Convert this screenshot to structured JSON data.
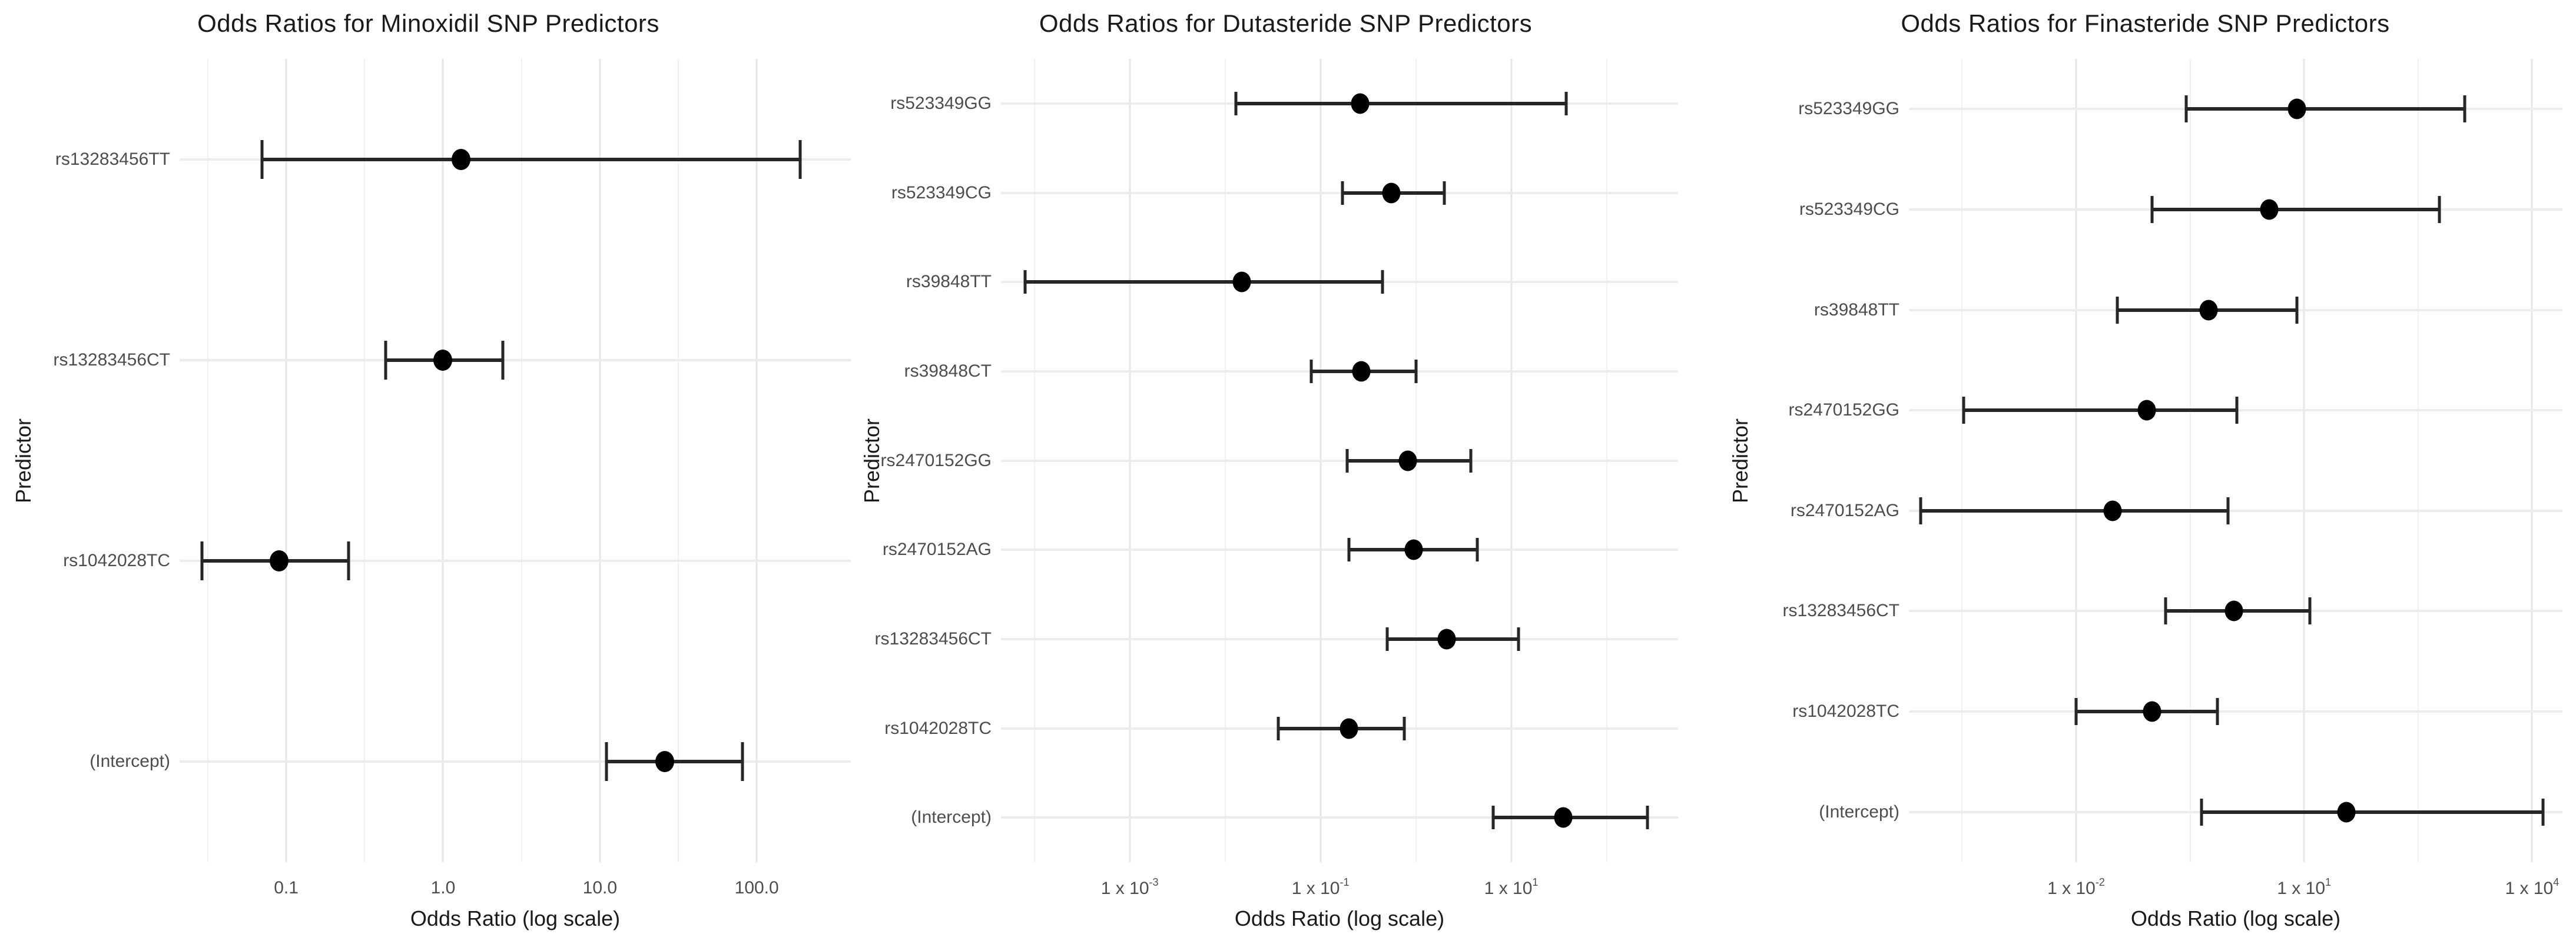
{
  "figure": {
    "background": "#ffffff",
    "palette": {
      "point": "#000000",
      "interval": "#262626",
      "grid_major": "#e6e6e6",
      "grid_minor": "#f1f1f1",
      "row_line": "#ececec",
      "tick_text": "#4d4d4d",
      "title_text": "#1a1a1a"
    }
  },
  "chart_data": [
    {
      "type": "scatter",
      "subtype": "forest-plot-odds-ratios-with-error-bars",
      "title": "Odds Ratios for Minoxidil SNP Predictors",
      "xlabel": "Odds Ratio (log scale)",
      "ylabel": "Predictor",
      "x_scale": "log10",
      "grid": "on",
      "legend": "none",
      "xlim_log10": [
        -1.68,
        2.6
      ],
      "x_ticks": [
        {
          "log10": -1,
          "text": "0.1"
        },
        {
          "log10": 0,
          "text": "1.0"
        },
        {
          "log10": 1,
          "text": "10.0"
        },
        {
          "log10": 2,
          "text": "100.0"
        }
      ],
      "x_minor_gridlines_log10": [
        -1.5,
        -0.5,
        0.5,
        1.5
      ],
      "rows": [
        {
          "label": "rs13283456TT",
          "or": 1.3,
          "ci_low": 0.07,
          "ci_high": 190
        },
        {
          "label": "rs13283456CT",
          "or": 1.0,
          "ci_low": 0.43,
          "ci_high": 2.4
        },
        {
          "label": "rs1042028TC",
          "or": 0.09,
          "ci_low": 0.029,
          "ci_high": 0.25
        },
        {
          "label": "(Intercept)",
          "or": 26,
          "ci_low": 11,
          "ci_high": 81
        }
      ]
    },
    {
      "type": "scatter",
      "subtype": "forest-plot-odds-ratios-with-error-bars",
      "title": "Odds Ratios for Dutasteride SNP Predictors",
      "xlabel": "Odds Ratio (log scale)",
      "ylabel": "Predictor",
      "x_scale": "log10",
      "grid": "on",
      "legend": "none",
      "xlim_log10": [
        -4.35,
        2.75
      ],
      "x_ticks": [
        {
          "log10": -3,
          "text": "1 x 10",
          "sup": "-3"
        },
        {
          "log10": -1,
          "text": "1 x 10",
          "sup": "-1"
        },
        {
          "log10": 1,
          "text": "1 x 10",
          "sup": "1"
        }
      ],
      "x_minor_gridlines_log10": [
        -4,
        -2,
        0,
        2
      ],
      "rows": [
        {
          "label": "rs523349GG",
          "or": 0.26,
          "ci_low": 0.013,
          "ci_high": 38
        },
        {
          "label": "rs523349CG",
          "or": 0.55,
          "ci_low": 0.17,
          "ci_high": 2.0
        },
        {
          "label": "rs39848TT",
          "or": 0.015,
          "ci_low": 8e-05,
          "ci_high": 0.45
        },
        {
          "label": "rs39848CT",
          "or": 0.27,
          "ci_low": 0.08,
          "ci_high": 1.0
        },
        {
          "label": "rs2470152GG",
          "or": 0.82,
          "ci_low": 0.19,
          "ci_high": 3.8
        },
        {
          "label": "rs2470152AG",
          "or": 0.95,
          "ci_low": 0.2,
          "ci_high": 4.4
        },
        {
          "label": "rs13283456CT",
          "or": 2.1,
          "ci_low": 0.5,
          "ci_high": 12
        },
        {
          "label": "rs1042028TC",
          "or": 0.2,
          "ci_low": 0.036,
          "ci_high": 0.76
        },
        {
          "label": "(Intercept)",
          "or": 35,
          "ci_low": 6.5,
          "ci_high": 270
        }
      ]
    },
    {
      "type": "scatter",
      "subtype": "forest-plot-odds-ratios-with-error-bars",
      "title": "Odds Ratios for Finasteride SNP Predictors",
      "xlabel": "Odds Ratio (log scale)",
      "ylabel": "Predictor",
      "x_scale": "log10",
      "grid": "on",
      "legend": "none",
      "xlim_log10": [
        -4.2,
        4.4
      ],
      "x_ticks": [
        {
          "log10": -2,
          "text": "1 x 10",
          "sup": "-2"
        },
        {
          "log10": 1,
          "text": "1 x 10",
          "sup": "1"
        },
        {
          "log10": 4,
          "text": "1 x 10",
          "sup": "4"
        }
      ],
      "x_minor_gridlines_log10": [
        -3.5,
        -0.5,
        2.5
      ],
      "rows": [
        {
          "label": "rs523349GG",
          "or": 8,
          "ci_low": 0.28,
          "ci_high": 1300
        },
        {
          "label": "rs523349CG",
          "or": 3.5,
          "ci_low": 0.1,
          "ci_high": 600
        },
        {
          "label": "rs39848TT",
          "or": 0.55,
          "ci_low": 0.035,
          "ci_high": 8
        },
        {
          "label": "rs2470152GG",
          "or": 0.085,
          "ci_low": 0.00033,
          "ci_high": 1.3
        },
        {
          "label": "rs2470152AG",
          "or": 0.03,
          "ci_low": 9e-05,
          "ci_high": 1.0
        },
        {
          "label": "rs13283456CT",
          "or": 1.2,
          "ci_low": 0.15,
          "ci_high": 12
        },
        {
          "label": "rs1042028TC",
          "or": 0.1,
          "ci_low": 0.01,
          "ci_high": 0.72
        },
        {
          "label": "(Intercept)",
          "or": 36,
          "ci_low": 0.45,
          "ci_high": 14000
        }
      ]
    }
  ]
}
